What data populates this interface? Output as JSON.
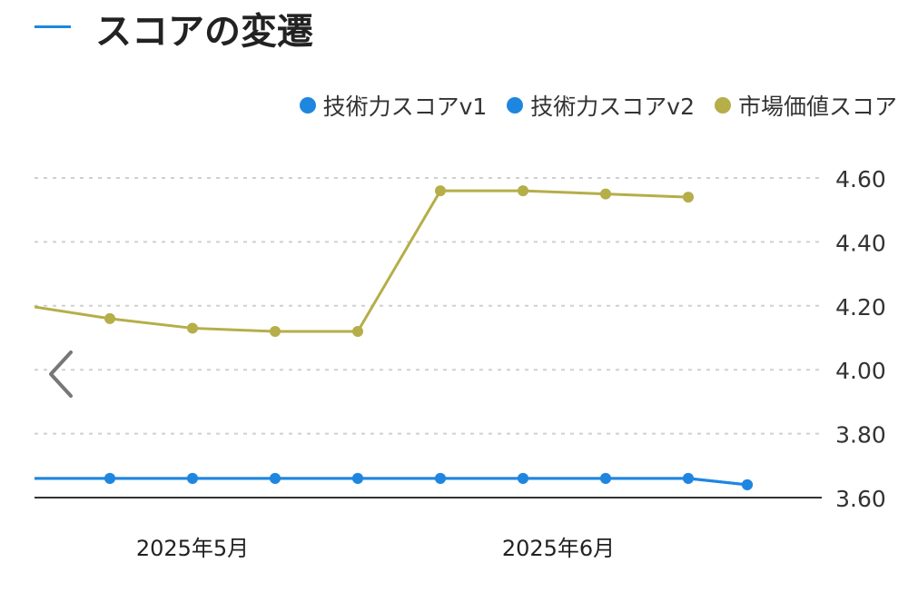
{
  "header": {
    "title": "スコアの変遷"
  },
  "colors": {
    "accent": "#1f86e0",
    "v1": "#1f86e0",
    "v2": "#1f86e0",
    "market": "#b5ae49"
  },
  "chart_data": {
    "type": "line",
    "title": "スコアの変遷",
    "x": [
      "2025-04-24",
      "2025-05-01",
      "2025-05-08",
      "2025-05-15",
      "2025-05-22",
      "2025-05-29",
      "2025-06-05",
      "2025-06-12",
      "2025-06-19",
      "2025-06-24"
    ],
    "x_tick_labels": [
      {
        "date": "2025-05-08",
        "label": "2025年5月"
      },
      {
        "date": "2025-06-08",
        "label": "2025年6月"
      }
    ],
    "series": [
      {
        "name": "技術力スコアv1",
        "color": "#1f86e0",
        "values": [
          3.66,
          3.66,
          3.66,
          3.66,
          3.66,
          3.66,
          3.66,
          3.66,
          3.66,
          3.64
        ]
      },
      {
        "name": "技術力スコアv2",
        "color": "#1f86e0",
        "values": [
          3.66,
          3.66,
          3.66,
          3.66,
          3.66,
          3.66,
          3.66,
          3.66,
          3.66,
          3.64
        ]
      },
      {
        "name": "市場価値スコア",
        "color": "#b5ae49",
        "values": [
          4.2,
          4.16,
          4.13,
          4.12,
          4.12,
          4.56,
          4.56,
          4.55,
          4.54,
          null
        ]
      }
    ],
    "ylim": [
      3.6,
      4.6
    ],
    "y_ticks": [
      "4.60",
      "4.40",
      "4.20",
      "4.00",
      "3.80",
      "3.60"
    ],
    "y_axis_position": "right",
    "grid": true,
    "legend_position": "top-right"
  }
}
